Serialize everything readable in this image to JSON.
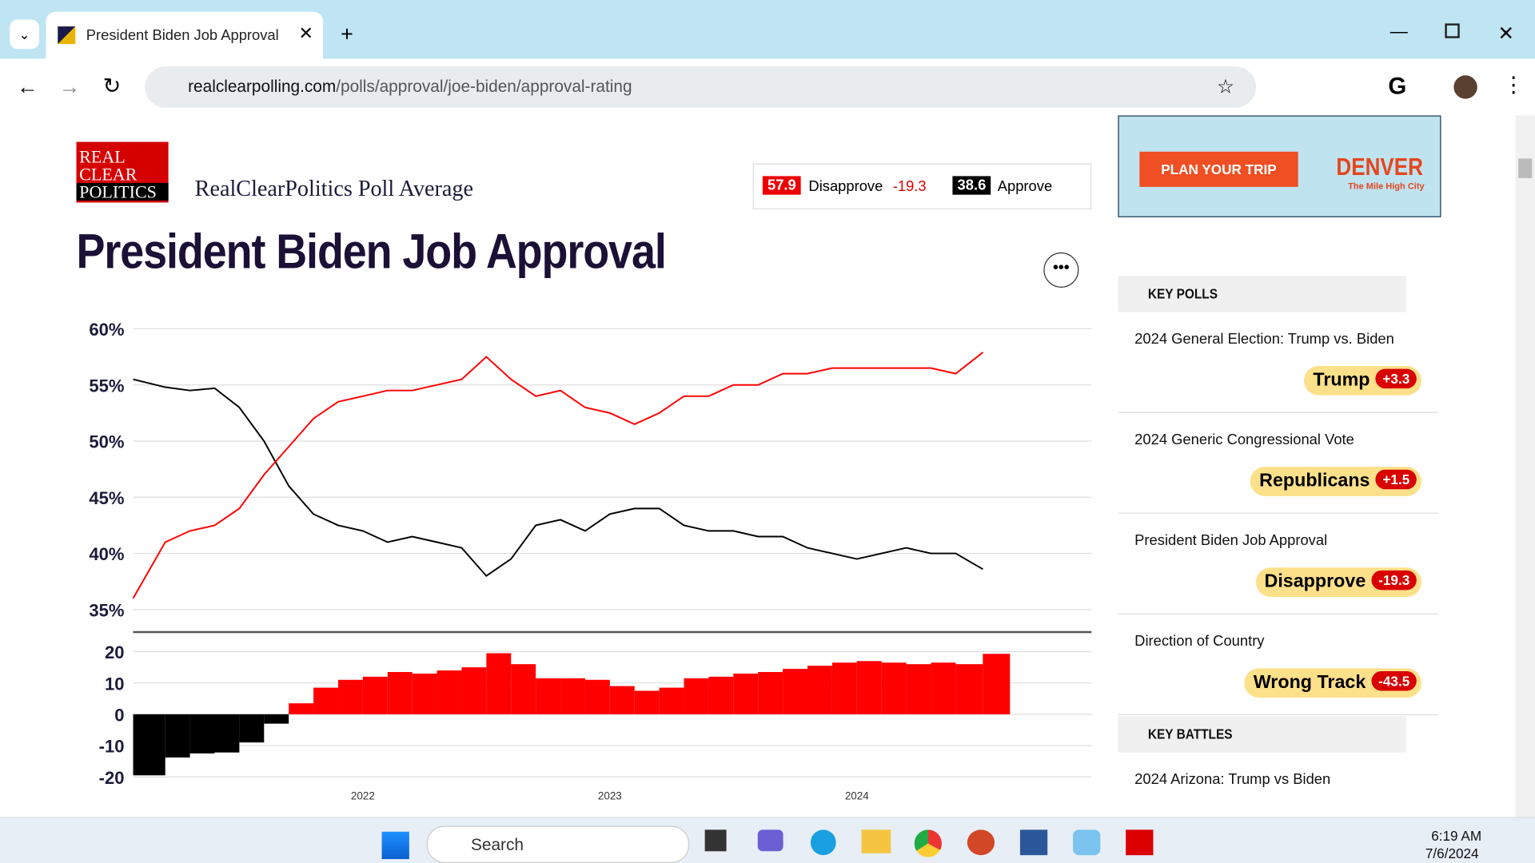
{
  "browser": {
    "tab_title": "President Biden Job Approval R",
    "url_domain": "realclearpolling.com",
    "url_path": "/polls/approval/joe-biden/approval-rating"
  },
  "header": {
    "logo": [
      "REAL",
      "CLEAR",
      "POLITICS"
    ],
    "subtitle": "RealClearPolitics Poll Average",
    "title": "President Biden Job Approval",
    "summary": {
      "disapprove_value": "57.9",
      "disapprove_label": "Disapprove",
      "spread": "-19.3",
      "approve_value": "38.6",
      "approve_label": "Approve"
    }
  },
  "chart_data": [
    {
      "type": "line",
      "xlim": [
        2021.07,
        2024.95
      ],
      "ylim": [
        35,
        60
      ],
      "yticks": [
        {
          "value": 60,
          "label": "60%"
        },
        {
          "value": 55,
          "label": "55%"
        },
        {
          "value": 50,
          "label": "50%"
        },
        {
          "value": 45,
          "label": "45%"
        },
        {
          "value": 40,
          "label": "40%"
        },
        {
          "value": 35,
          "label": "35%"
        }
      ],
      "grid": true,
      "x": [
        2021.07,
        2021.2,
        2021.3,
        2021.4,
        2021.5,
        2021.6,
        2021.7,
        2021.8,
        2021.9,
        2022.0,
        2022.1,
        2022.2,
        2022.3,
        2022.4,
        2022.5,
        2022.6,
        2022.7,
        2022.8,
        2022.9,
        2023.0,
        2023.1,
        2023.2,
        2023.3,
        2023.4,
        2023.5,
        2023.6,
        2023.7,
        2023.8,
        2023.9,
        2024.0,
        2024.1,
        2024.2,
        2024.3,
        2024.4,
        2024.51
      ],
      "series": [
        {
          "color": "#000000",
          "values": [
            55.5,
            54.8,
            54.5,
            54.7,
            53,
            50,
            46,
            43.5,
            42.5,
            42,
            41,
            41.5,
            41,
            40.5,
            38,
            39.5,
            42.5,
            43,
            42,
            43.5,
            44,
            44,
            42.5,
            42,
            42,
            41.5,
            41.5,
            40.5,
            40,
            39.5,
            40,
            40.5,
            40,
            40,
            38.6
          ]
        },
        {
          "color": "#ff0000",
          "values": [
            36,
            41,
            42,
            42.5,
            44,
            47,
            49.5,
            52,
            53.5,
            54,
            54.5,
            54.5,
            55,
            55.5,
            57.5,
            55.5,
            54,
            54.5,
            53,
            52.5,
            51.5,
            52.5,
            54,
            54,
            55,
            55,
            56,
            56,
            56.5,
            56.5,
            56.5,
            56.5,
            56.5,
            56,
            57.9
          ]
        }
      ]
    },
    {
      "type": "bar",
      "xlim": [
        2021.07,
        2024.95
      ],
      "ylim": [
        -20,
        20
      ],
      "yticks": [
        20,
        10,
        0,
        -10,
        -20
      ],
      "xticks": [
        2022,
        2023,
        2024
      ],
      "grid": true,
      "positive_color": "#ff0000",
      "negative_color": "#000000",
      "x": [
        2021.07,
        2021.2,
        2021.3,
        2021.4,
        2021.5,
        2021.6,
        2021.7,
        2021.8,
        2021.9,
        2022.0,
        2022.1,
        2022.2,
        2022.3,
        2022.4,
        2022.5,
        2022.6,
        2022.7,
        2022.8,
        2022.9,
        2023.0,
        2023.1,
        2023.2,
        2023.3,
        2023.4,
        2023.5,
        2023.6,
        2023.7,
        2023.8,
        2023.9,
        2024.0,
        2024.1,
        2024.2,
        2024.3,
        2024.4,
        2024.51
      ],
      "values": [
        -19.5,
        -13.8,
        -12.5,
        -12.2,
        -9,
        -3,
        3.5,
        8.5,
        11,
        12,
        13.5,
        13,
        14,
        15,
        19.5,
        16,
        11.5,
        11.5,
        11,
        9,
        7.5,
        8.5,
        11.5,
        12,
        13,
        13.5,
        14.5,
        15.5,
        16.5,
        17,
        16.5,
        16,
        16.5,
        16,
        19.3
      ]
    }
  ],
  "ad": {
    "button": "PLAN YOUR TRIP",
    "brand": "DENVER",
    "tagline": "The Mile High City"
  },
  "sidebar": {
    "key_polls": "KEY POLLS",
    "polls": [
      {
        "title": "2024 General Election: Trump vs. Biden",
        "leader": "Trump",
        "spread": "+3.3"
      },
      {
        "title": "2024 Generic Congressional Vote",
        "leader": "Republicans",
        "spread": "+1.5"
      },
      {
        "title": "President Biden Job Approval",
        "leader": "Disapprove",
        "spread": "-19.3"
      },
      {
        "title": "Direction of Country",
        "leader": "Wrong Track",
        "spread": "-43.5"
      }
    ],
    "key_battles": "KEY BATTLES",
    "battles": [
      {
        "title": "2024 Arizona: Trump vs Biden"
      }
    ]
  },
  "taskbar": {
    "search": "Search",
    "time": "6:19 AM",
    "date": "7/6/2024"
  }
}
